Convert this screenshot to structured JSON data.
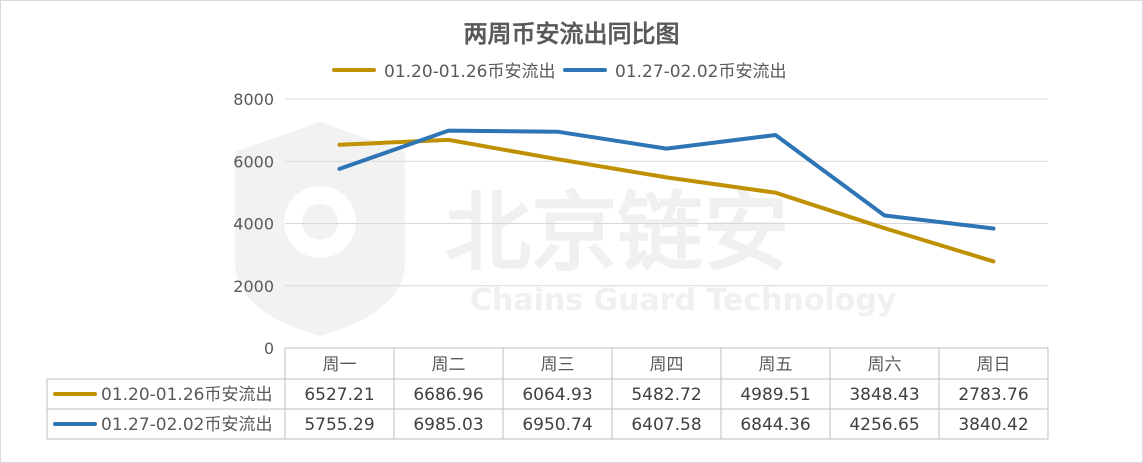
{
  "chart_data": {
    "type": "line",
    "title": "两周币安流出同比图",
    "categories": [
      "周一",
      "周二",
      "周三",
      "周四",
      "周五",
      "周六",
      "周日"
    ],
    "series": [
      {
        "name": "01.20-01.26币安流出",
        "color": "#bf9000",
        "values": [
          6527.21,
          6686.96,
          6064.93,
          5482.72,
          4989.51,
          3848.43,
          2783.76
        ]
      },
      {
        "name": "01.27-02.02币安流出",
        "color": "#2e75b6",
        "values": [
          5755.29,
          6985.03,
          6950.74,
          6407.58,
          6844.36,
          4256.65,
          3840.42
        ]
      }
    ],
    "ylim": [
      0,
      8000
    ],
    "yticks": [
      0,
      2000,
      4000,
      6000,
      8000
    ],
    "grid": true,
    "legend": "top",
    "data_table": true,
    "watermark": {
      "text": "北京链安",
      "subtext": "Chains Guard Technology"
    }
  }
}
